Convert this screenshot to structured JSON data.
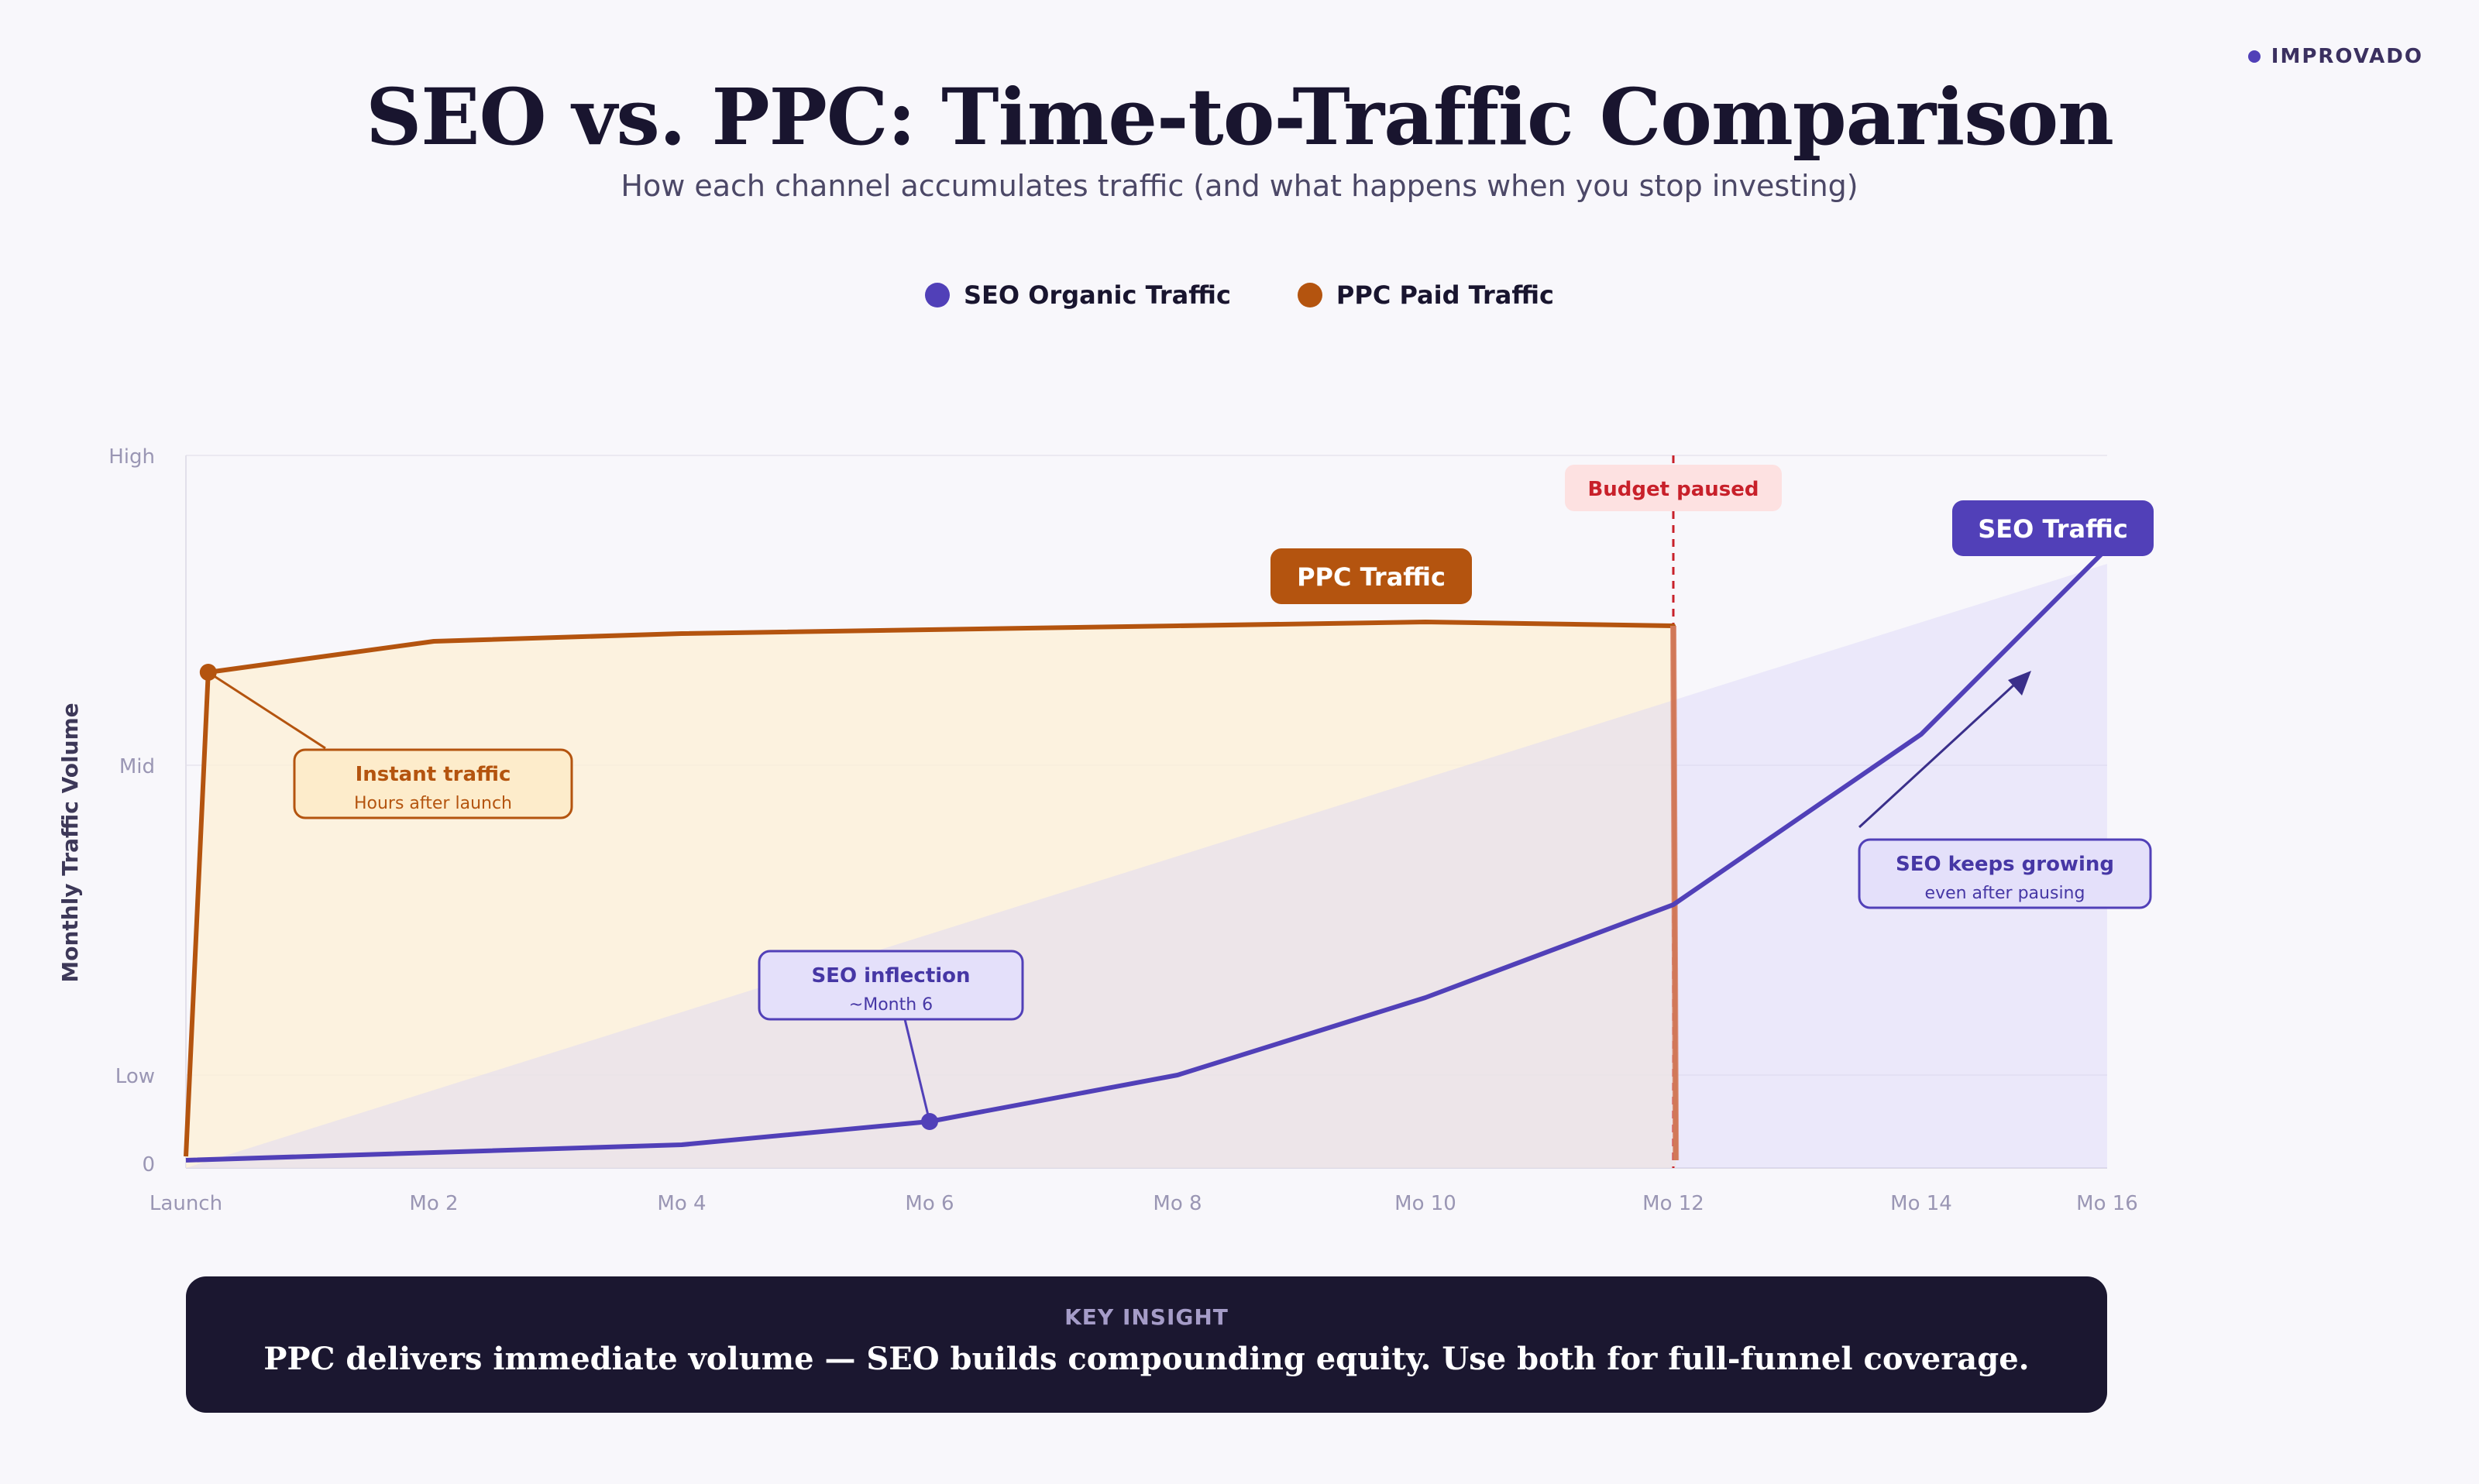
{
  "brand": "IMPROVADO",
  "colors": {
    "seo": "#5140b8",
    "ppc": "#b4540f",
    "budget": "#c8202a",
    "dark_panel": "#1b1730"
  },
  "chart_data": {
    "type": "line",
    "title": "SEO vs. PPC: Time-to-Traffic Comparison",
    "subtitle": "How each channel accumulates traffic (and what happens when you stop investing)",
    "xlabel": "",
    "ylabel": "Monthly Traffic Volume",
    "x_ticks": [
      "Launch",
      "Mo 2",
      "Mo 4",
      "Mo 6",
      "Mo 8",
      "Mo 10",
      "Mo 12",
      "Mo 14",
      "Mo 16"
    ],
    "y_ticks": [
      {
        "label": "0",
        "value": 0
      },
      {
        "label": "Low",
        "value": 12
      },
      {
        "label": "Mid",
        "value": 52
      },
      {
        "label": "High",
        "value": 92
      }
    ],
    "xlim": [
      0,
      15.5
    ],
    "ylim": [
      0,
      92
    ],
    "grid": true,
    "legend_position": "top-center",
    "series": [
      {
        "name": "SEO Organic Traffic",
        "color": "#5140b8",
        "x": [
          0,
          4,
          6,
          8,
          10,
          12,
          14,
          15.5
        ],
        "y": [
          1,
          3,
          6,
          12,
          22,
          34,
          56,
          80
        ]
      },
      {
        "name": "PPC Paid Traffic",
        "color": "#b4540f",
        "x": [
          0,
          0.18,
          2,
          4,
          8,
          10,
          12,
          12.02
        ],
        "y": [
          1.5,
          64,
          68,
          69,
          70,
          70.5,
          70,
          1
        ]
      }
    ],
    "trend_band": {
      "x": [
        0,
        15.5
      ],
      "y_top": [
        0,
        78
      ]
    },
    "vertical_marker": {
      "x": 12,
      "label": "Budget paused"
    },
    "series_labels": [
      {
        "text": "PPC Traffic",
        "series": 1
      },
      {
        "text": "SEO Traffic",
        "series": 0
      }
    ],
    "annotations": [
      {
        "title": "Instant traffic",
        "subtitle": "Hours after launch",
        "point": [
          0.18,
          64
        ],
        "series": 1
      },
      {
        "title": "SEO inflection",
        "subtitle": "~Month 6",
        "point": [
          6,
          6
        ],
        "series": 0
      },
      {
        "title": "SEO keeps growing",
        "subtitle": "even after pausing",
        "arrow": true,
        "series": 0
      }
    ]
  },
  "insight": {
    "label": "KEY INSIGHT",
    "text": "PPC delivers immediate volume — SEO builds compounding equity. Use both for full-funnel coverage."
  }
}
